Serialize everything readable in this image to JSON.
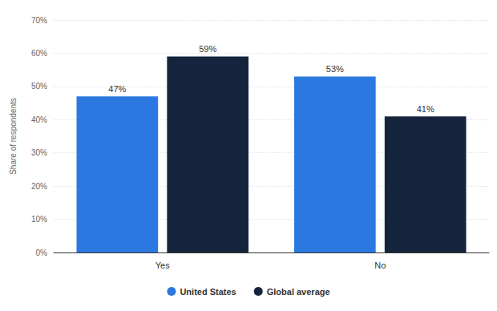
{
  "chart_data": {
    "type": "bar",
    "y_label": "Share of respondents",
    "categories": [
      "Yes",
      "No"
    ],
    "series": [
      {
        "name": "United States",
        "color": "#2b78e0",
        "values": [
          47,
          53
        ],
        "value_labels": [
          "47%",
          "53%"
        ]
      },
      {
        "name": "Global average",
        "color": "#14243d",
        "values": [
          59,
          41
        ],
        "value_labels": [
          "59%",
          "41%"
        ]
      }
    ],
    "ylim": [
      0,
      70
    ],
    "yticks": [
      {
        "value": 0,
        "label": "0%"
      },
      {
        "value": 10,
        "label": "10%"
      },
      {
        "value": 20,
        "label": "20%"
      },
      {
        "value": 30,
        "label": "30%"
      },
      {
        "value": 40,
        "label": "40%"
      },
      {
        "value": 50,
        "label": "50%"
      },
      {
        "value": 60,
        "label": "60%"
      },
      {
        "value": 70,
        "label": "70%"
      }
    ],
    "grid": true,
    "legend": "bottom",
    "data_labels": true
  }
}
